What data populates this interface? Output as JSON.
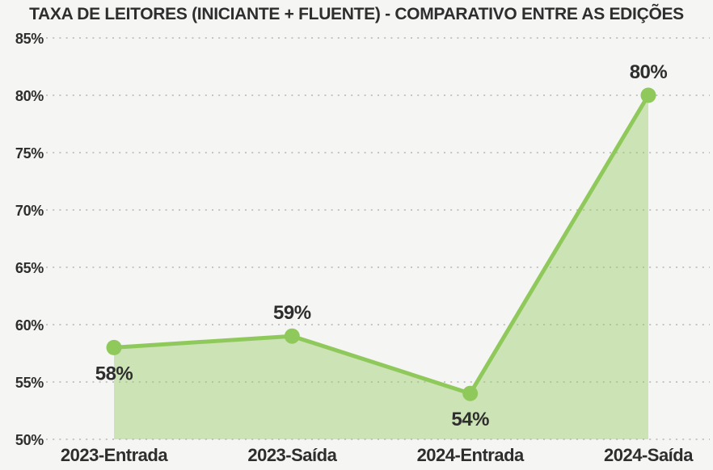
{
  "page": {
    "background": "#f5f5f3"
  },
  "chart": {
    "title": "TAXA DE LEITORES (INICIANTE + FLUENTE) - COMPARATIVO ENTRE AS EDIÇÕES"
  },
  "chart_data": {
    "type": "area",
    "title": "TAXA DE LEITORES (INICIANTE + FLUENTE) - COMPARATIVO ENTRE AS EDIÇÕES",
    "categories": [
      "2023-Entrada",
      "2023-Saída",
      "2024-Entrada",
      "2024-Saída"
    ],
    "values": [
      58,
      59,
      54,
      80
    ],
    "data_labels": [
      "58%",
      "59%",
      "54%",
      "80%"
    ],
    "label_positions": [
      "below",
      "above",
      "below",
      "above"
    ],
    "y_ticks": [
      {
        "label": "85%",
        "value": 85
      },
      {
        "label": "80%",
        "value": 80
      },
      {
        "label": "75%",
        "value": 75
      },
      {
        "label": "70%",
        "value": 70
      },
      {
        "label": "65%",
        "value": 65
      },
      {
        "label": "60%",
        "value": 60
      },
      {
        "label": "55%",
        "value": 55
      },
      {
        "label": "50%",
        "value": 50
      }
    ],
    "ylim": [
      50,
      85
    ],
    "xlabel": "",
    "ylabel": "",
    "grid": "horizontal-dotted",
    "legend": "none",
    "colors": {
      "line": "#90c95b",
      "marker": "#90c95b",
      "area": "rgba(148, 203, 95, 0.42)",
      "grid": "#c4c4c4",
      "text": "#2e2e2e",
      "background": "#f5f5f3"
    }
  }
}
